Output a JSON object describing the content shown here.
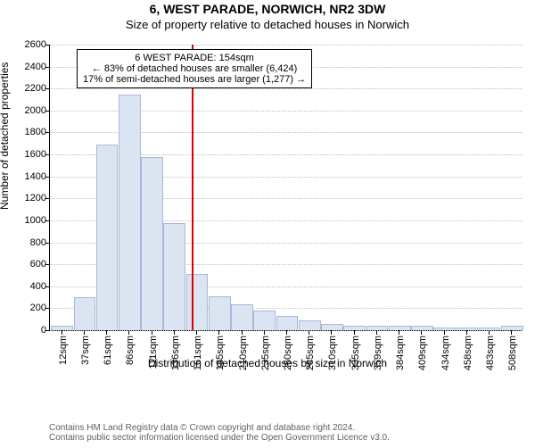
{
  "title_address": "6, WEST PARADE, NORWICH, NR2 3DW",
  "subtitle": "Size of property relative to detached houses in Norwich",
  "ylabel": "Number of detached properties",
  "xlabel": "Distribution of detached houses by size in Norwich",
  "footer1": "Contains HM Land Registry data © Crown copyright and database right 2024.",
  "footer2": "Contains public sector information licensed under the Open Government Licence v3.0.",
  "chart": {
    "type": "histogram",
    "background_color": "#ffffff",
    "grid_color": "#c0c0c0",
    "axis_color": "#000000",
    "bar_fill": "#dbe5f1",
    "bar_stroke": "#a8b8d8",
    "marker_color": "#dc0000",
    "ymax": 2600,
    "ytick_step": 200,
    "xticks": [
      "12sqm",
      "37sqm",
      "61sqm",
      "86sqm",
      "111sqm",
      "136sqm",
      "161sqm",
      "185sqm",
      "210sqm",
      "235sqm",
      "260sqm",
      "285sqm",
      "310sqm",
      "335sqm",
      "359sqm",
      "384sqm",
      "409sqm",
      "434sqm",
      "458sqm",
      "483sqm",
      "508sqm"
    ],
    "values": [
      30,
      290,
      1680,
      2140,
      1570,
      970,
      500,
      300,
      230,
      170,
      120,
      80,
      50,
      30,
      30,
      30,
      30,
      20,
      20,
      20,
      30
    ],
    "bar_width_ratio": 0.9,
    "marker_value_sqm": 154,
    "marker_index": 5.8,
    "label_fontsize": 11,
    "title_fontsize": 14
  },
  "infobox": {
    "line1": "6 WEST PARADE: 154sqm",
    "line2": "← 83% of detached houses are smaller (6,424)",
    "line3": "17% of semi-detached houses are larger (1,277) →"
  }
}
